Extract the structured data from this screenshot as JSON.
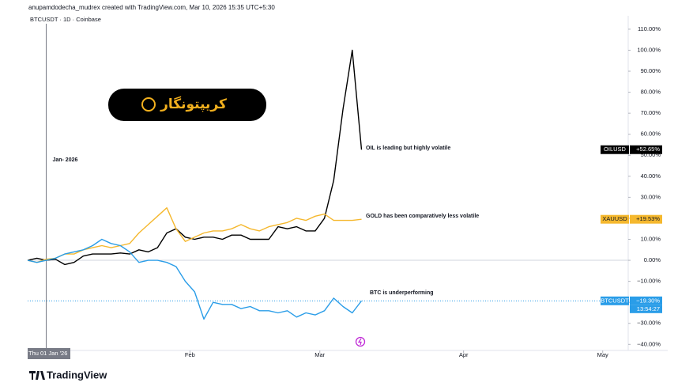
{
  "chart_data": {
    "type": "line",
    "header": "anupamdodecha_mudrex created with TradingView.com, Mar 10, 2026 15:35 UTC+5:30",
    "title": "BTCUSDT · 1D · Coinbase",
    "badge": "کریپتونگار",
    "brand": "TradingView",
    "marker_label": "Jan- 2026",
    "annotations": [
      "OIL is leading but highly volatile",
      "GOLD has been comparatively less volatile",
      "BTC is underperforming"
    ],
    "x": [
      -4,
      -2,
      0,
      2,
      4,
      6,
      8,
      10,
      12,
      14,
      16,
      18,
      20,
      22,
      24,
      26,
      28,
      30,
      32,
      34,
      36,
      38,
      40,
      42,
      44,
      46,
      48,
      50,
      52,
      54,
      56,
      58,
      60,
      62,
      64,
      66,
      68
    ],
    "xlim": [
      -4,
      125.5
    ],
    "xticks": [
      {
        "value": 0,
        "label": "Thu 01 Jan '26"
      },
      {
        "value": 31,
        "label": "Feb"
      },
      {
        "value": 59,
        "label": "Mar"
      },
      {
        "value": 90,
        "label": "Apr"
      },
      {
        "value": 120,
        "label": "May"
      }
    ],
    "ylim": [
      -42.9,
      112.6
    ],
    "yticks": [
      {
        "value": 110,
        "label": "110.00%"
      },
      {
        "value": 100,
        "label": "100.00%"
      },
      {
        "value": 90,
        "label": "90.00%"
      },
      {
        "value": 80,
        "label": "80.00%"
      },
      {
        "value": 70,
        "label": "70.00%"
      },
      {
        "value": 60,
        "label": "60.00%"
      },
      {
        "value": 50,
        "label": "50.00%"
      },
      {
        "value": 40,
        "label": "40.00%"
      },
      {
        "value": 30,
        "label": "30.00%"
      },
      {
        "value": 20,
        "label": "20.00%"
      },
      {
        "value": 10,
        "label": "10.00%"
      },
      {
        "value": 0,
        "label": "0.00%"
      },
      {
        "value": -10,
        "label": "−10.00%"
      },
      {
        "value": -20,
        "label": "−20.00%"
      },
      {
        "value": -30,
        "label": "−30.00%"
      },
      {
        "value": -40,
        "label": "−40.00%"
      }
    ],
    "series": [
      {
        "name": "OILUSD",
        "color": "#000000",
        "last_label": "+52.65%",
        "values": [
          0,
          1,
          0,
          0.5,
          -2,
          -1,
          2,
          3,
          3,
          3,
          3.5,
          3,
          5,
          4,
          6,
          13,
          15,
          11,
          10,
          11,
          11,
          10,
          12,
          12,
          10,
          10,
          10,
          16,
          15,
          16,
          14,
          14,
          20,
          38,
          72,
          100,
          52.65
        ]
      },
      {
        "name": "XAUUSD",
        "color": "#f5b82e",
        "last_label": "+19.53%",
        "values": [
          0,
          -1,
          0.5,
          1,
          3,
          3,
          5,
          6,
          7,
          6,
          7,
          8,
          13,
          17,
          21,
          25,
          15,
          9,
          11,
          13,
          14,
          14,
          15,
          17,
          15,
          14,
          16,
          17,
          18,
          20,
          19,
          21,
          22,
          19,
          19,
          19,
          19.53
        ]
      },
      {
        "name": "BTCUSDT",
        "color": "#2a9de8",
        "last_label": "−19.30%",
        "countdown": "13:54:27",
        "values": [
          0,
          -1,
          0,
          1,
          3,
          4,
          5,
          7,
          10,
          8,
          7,
          4,
          -1,
          0,
          0,
          -1,
          -3,
          -10,
          -15,
          -28,
          -20,
          -21,
          -21,
          -23,
          -22,
          -24,
          -24,
          -25,
          -24,
          -27,
          -25,
          -26,
          -24,
          -18,
          -22,
          -25,
          -19.3
        ]
      }
    ]
  }
}
